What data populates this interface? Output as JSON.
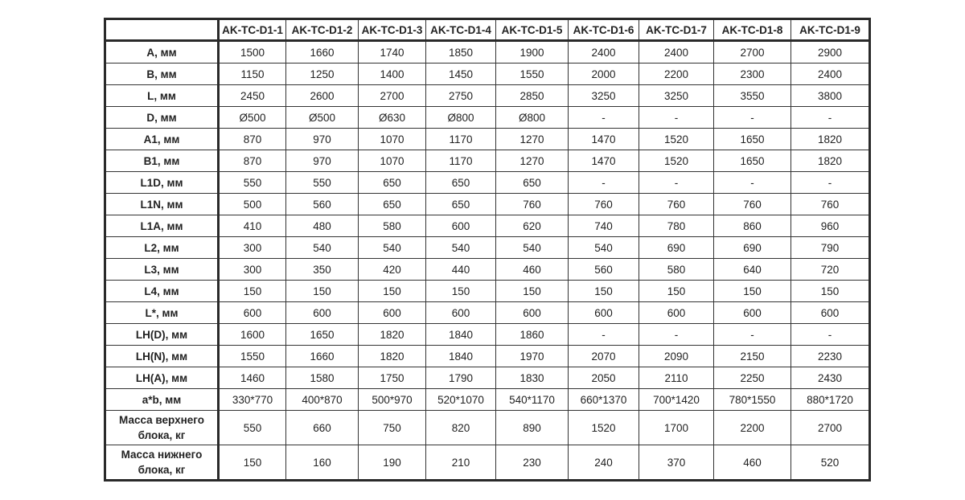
{
  "columns": [
    "",
    "AK-TC-D1-1",
    "AK-TC-D1-2",
    "AK-TC-D1-3",
    "AK-TC-D1-4",
    "AK-TC-D1-5",
    "AK-TC-D1-6",
    "AK-TC-D1-7",
    "AK-TC-D1-8",
    "AK-TC-D1-9"
  ],
  "rows": [
    {
      "label": "A, мм",
      "values": [
        "1500",
        "1660",
        "1740",
        "1850",
        "1900",
        "2400",
        "2400",
        "2700",
        "2900"
      ]
    },
    {
      "label": "B, мм",
      "values": [
        "1150",
        "1250",
        "1400",
        "1450",
        "1550",
        "2000",
        "2200",
        "2300",
        "2400"
      ]
    },
    {
      "label": "L, мм",
      "values": [
        "2450",
        "2600",
        "2700",
        "2750",
        "2850",
        "3250",
        "3250",
        "3550",
        "3800"
      ]
    },
    {
      "label": "D, мм",
      "values": [
        "Ø500",
        "Ø500",
        "Ø630",
        "Ø800",
        "Ø800",
        "-",
        "-",
        "-",
        "-"
      ]
    },
    {
      "label": "A1, мм",
      "values": [
        "870",
        "970",
        "1070",
        "1170",
        "1270",
        "1470",
        "1520",
        "1650",
        "1820"
      ]
    },
    {
      "label": "B1, мм",
      "values": [
        "870",
        "970",
        "1070",
        "1170",
        "1270",
        "1470",
        "1520",
        "1650",
        "1820"
      ]
    },
    {
      "label": "L1D, мм",
      "values": [
        "550",
        "550",
        "650",
        "650",
        "650",
        "-",
        "-",
        "-",
        "-"
      ]
    },
    {
      "label": "L1N, мм",
      "values": [
        "500",
        "560",
        "650",
        "650",
        "760",
        "760",
        "760",
        "760",
        "760"
      ]
    },
    {
      "label": "L1A, мм",
      "values": [
        "410",
        "480",
        "580",
        "600",
        "620",
        "740",
        "780",
        "860",
        "960"
      ]
    },
    {
      "label": "L2, мм",
      "values": [
        "300",
        "540",
        "540",
        "540",
        "540",
        "540",
        "690",
        "690",
        "790"
      ]
    },
    {
      "label": "L3, мм",
      "values": [
        "300",
        "350",
        "420",
        "440",
        "460",
        "560",
        "580",
        "640",
        "720"
      ]
    },
    {
      "label": "L4, мм",
      "values": [
        "150",
        "150",
        "150",
        "150",
        "150",
        "150",
        "150",
        "150",
        "150"
      ]
    },
    {
      "label": "L*, мм",
      "values": [
        "600",
        "600",
        "600",
        "600",
        "600",
        "600",
        "600",
        "600",
        "600"
      ]
    },
    {
      "label": "LH(D), мм",
      "values": [
        "1600",
        "1650",
        "1820",
        "1840",
        "1860",
        "-",
        "-",
        "-",
        "-"
      ]
    },
    {
      "label": "LH(N), мм",
      "values": [
        "1550",
        "1660",
        "1820",
        "1840",
        "1970",
        "2070",
        "2090",
        "2150",
        "2230"
      ]
    },
    {
      "label": "LH(A), мм",
      "values": [
        "1460",
        "1580",
        "1750",
        "1790",
        "1830",
        "2050",
        "2110",
        "2250",
        "2430"
      ]
    },
    {
      "label": "a*b, мм",
      "values": [
        "330*770",
        "400*870",
        "500*970",
        "520*1070",
        "540*1170",
        "660*1370",
        "700*1420",
        "780*1550",
        "880*1720"
      ]
    },
    {
      "label": "Масса верхнего блока, кг",
      "values": [
        "550",
        "660",
        "750",
        "820",
        "890",
        "1520",
        "1700",
        "2200",
        "2700"
      ]
    },
    {
      "label": "Масса нижнего блока, кг",
      "values": [
        "150",
        "160",
        "190",
        "210",
        "230",
        "240",
        "370",
        "460",
        "520"
      ]
    }
  ]
}
